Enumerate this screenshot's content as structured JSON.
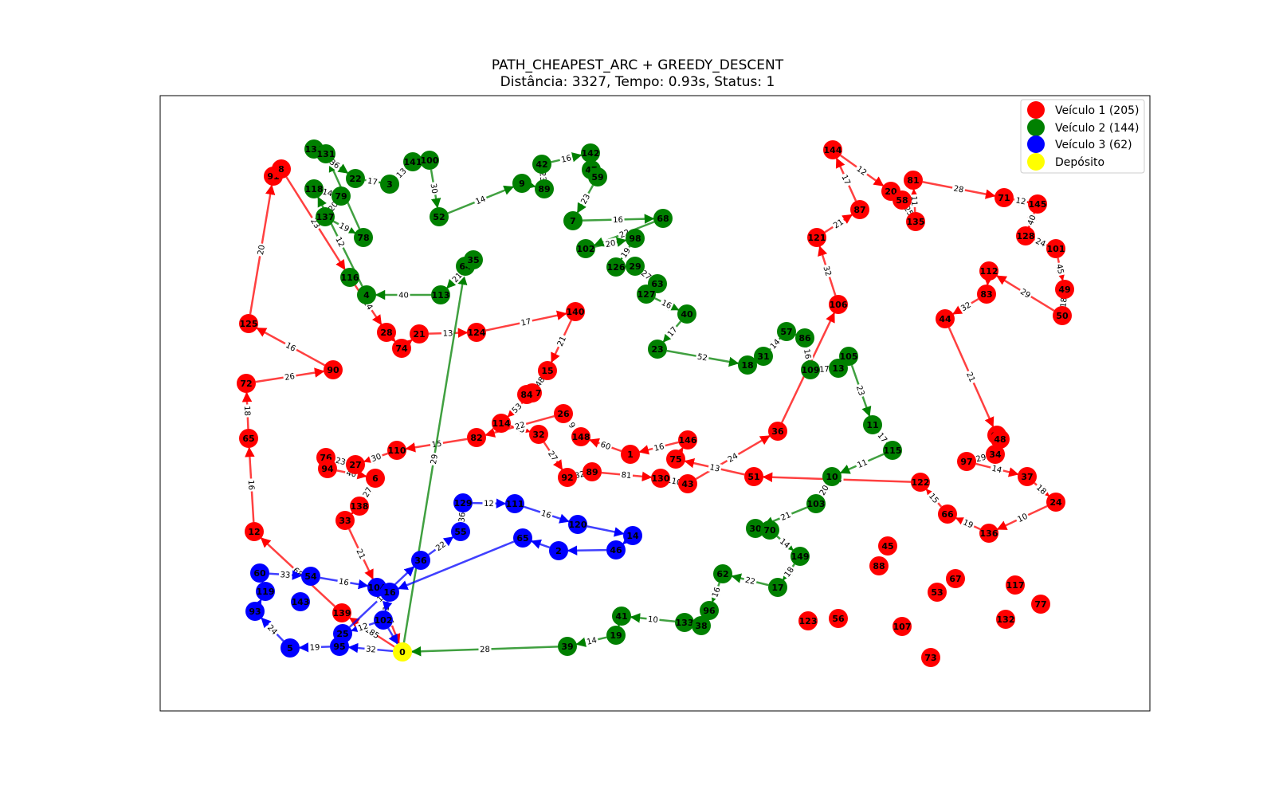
{
  "title": {
    "line1": "PATH_CHEAPEST_ARC + GREEDY_DESCENT",
    "line2": "Distância: 3327, Tempo: 0.93s, Status: 1"
  },
  "legend": [
    {
      "label": "Veículo 1 (205)",
      "color": "#ff0000"
    },
    {
      "label": "Veículo 2 (144)",
      "color": "#008000"
    },
    {
      "label": "Veículo 3 (62)",
      "color": "#0000ff"
    },
    {
      "label": "Depósito",
      "color": "#ffff00"
    }
  ],
  "routes": [
    {
      "color": "#ff0000",
      "path": [
        "0",
        "139",
        "12",
        "65",
        "72",
        "90",
        "125",
        "91",
        "8",
        "116",
        "28",
        "74",
        "21",
        "124",
        "140",
        "15",
        "147",
        "114",
        "32",
        "92",
        "89",
        "130",
        "43",
        "36",
        "106",
        "121",
        "87",
        "144",
        "20",
        "58",
        "135",
        "81",
        "71",
        "145",
        "128",
        "101",
        "49",
        "50",
        "112",
        "83",
        "44",
        "61",
        "34",
        "97",
        "37",
        "24",
        "136",
        "66",
        "122",
        "51",
        "75",
        "146",
        "1",
        "148",
        "26",
        "82",
        "110",
        "27",
        "76",
        "94",
        "6",
        "138",
        "33",
        "104",
        "0"
      ]
    },
    {
      "color": "#008000",
      "path": [
        "0",
        "64",
        "35",
        "113",
        "4",
        "118",
        "79",
        "137",
        "78",
        "131",
        "134",
        "22",
        "3",
        "141",
        "100",
        "52",
        "9",
        "89g",
        "42",
        "142",
        "47",
        "59",
        "7",
        "68",
        "102",
        "98",
        "126",
        "29",
        "63",
        "127",
        "40",
        "23",
        "18",
        "31",
        "57",
        "86",
        "109",
        "13",
        "105",
        "11",
        "115",
        "10",
        "103",
        "30",
        "70",
        "149",
        "17",
        "62",
        "96",
        "38",
        "133",
        "41",
        "19",
        "39",
        "0"
      ]
    },
    {
      "color": "#0000ff",
      "path": [
        "0",
        "95",
        "5",
        "93",
        "119",
        "60",
        "54",
        "104",
        "16",
        "102b",
        "25",
        "36b",
        "55",
        "129",
        "111",
        "120",
        "14",
        "46",
        "2",
        "65b",
        "16",
        "102b",
        "0"
      ]
    }
  ],
  "edge_weights": [
    "185",
    "68",
    "16",
    "18",
    "26",
    "16",
    "20",
    "23",
    "14",
    "13",
    "17",
    "21",
    "48",
    "53",
    "25",
    "27",
    "32",
    "81",
    "110",
    "24",
    "34",
    "32",
    "21",
    "17",
    "12",
    "25",
    "11",
    "28",
    "12",
    "40",
    "24",
    "45",
    "18",
    "29",
    "32",
    "21",
    "29",
    "14",
    "18",
    "10",
    "19",
    "15",
    "34",
    "13",
    "16",
    "60",
    "9",
    "22",
    "15",
    "30",
    "23",
    "40",
    "27",
    "21",
    "36",
    "29",
    "21",
    "40",
    "12",
    "14",
    "20",
    "19",
    "14",
    "36",
    "17",
    "13",
    "30",
    "14",
    "23",
    "16",
    "23",
    "16",
    "22",
    "20",
    "19",
    "27",
    "16",
    "17",
    "52",
    "14",
    "16",
    "17",
    "23",
    "17",
    "11",
    "20",
    "21",
    "14",
    "18",
    "22",
    "16",
    "10",
    "14",
    "28",
    "32",
    "19",
    "24",
    "33",
    "16",
    "12",
    "12",
    "19",
    "22",
    "36",
    "12",
    "16"
  ],
  "nodes": [
    {
      "id": "0",
      "label": "0",
      "color": "#ffff00"
    },
    {
      "id": "139",
      "label": "139",
      "color": "#ff0000"
    },
    {
      "id": "12",
      "label": "12",
      "color": "#ff0000"
    },
    {
      "id": "65",
      "label": "65",
      "color": "#ff0000"
    },
    {
      "id": "72",
      "label": "72",
      "color": "#ff0000"
    },
    {
      "id": "90",
      "label": "90",
      "color": "#ff0000"
    },
    {
      "id": "125",
      "label": "125",
      "color": "#ff0000"
    },
    {
      "id": "91",
      "label": "91",
      "color": "#ff0000"
    },
    {
      "id": "8",
      "label": "8",
      "color": "#ff0000"
    },
    {
      "id": "28",
      "label": "28",
      "color": "#ff0000"
    },
    {
      "id": "74",
      "label": "74",
      "color": "#ff0000"
    },
    {
      "id": "21",
      "label": "21",
      "color": "#ff0000"
    },
    {
      "id": "124",
      "label": "124",
      "color": "#ff0000"
    },
    {
      "id": "140",
      "label": "140",
      "color": "#ff0000"
    },
    {
      "id": "15",
      "label": "15",
      "color": "#ff0000"
    },
    {
      "id": "147",
      "label": "147",
      "color": "#ff0000"
    },
    {
      "id": "84",
      "label": "84",
      "color": "#ff0000"
    },
    {
      "id": "114",
      "label": "114",
      "color": "#ff0000"
    },
    {
      "id": "32",
      "label": "32",
      "color": "#ff0000"
    },
    {
      "id": "92",
      "label": "92",
      "color": "#ff0000"
    },
    {
      "id": "89",
      "label": "89",
      "color": "#ff0000"
    },
    {
      "id": "130",
      "label": "130",
      "color": "#ff0000"
    },
    {
      "id": "43",
      "label": "43",
      "color": "#ff0000"
    },
    {
      "id": "36",
      "label": "36",
      "color": "#ff0000"
    },
    {
      "id": "106",
      "label": "106",
      "color": "#ff0000"
    },
    {
      "id": "121",
      "label": "121",
      "color": "#ff0000"
    },
    {
      "id": "87",
      "label": "87",
      "color": "#ff0000"
    },
    {
      "id": "144",
      "label": "144",
      "color": "#ff0000"
    },
    {
      "id": "20",
      "label": "20",
      "color": "#ff0000"
    },
    {
      "id": "58",
      "label": "58",
      "color": "#ff0000"
    },
    {
      "id": "135",
      "label": "135",
      "color": "#ff0000"
    },
    {
      "id": "81",
      "label": "81",
      "color": "#ff0000"
    },
    {
      "id": "71",
      "label": "71",
      "color": "#ff0000"
    },
    {
      "id": "145",
      "label": "145",
      "color": "#ff0000"
    },
    {
      "id": "128",
      "label": "128",
      "color": "#ff0000"
    },
    {
      "id": "101",
      "label": "101",
      "color": "#ff0000"
    },
    {
      "id": "49",
      "label": "49",
      "color": "#ff0000"
    },
    {
      "id": "50",
      "label": "50",
      "color": "#ff0000"
    },
    {
      "id": "112",
      "label": "112",
      "color": "#ff0000"
    },
    {
      "id": "83",
      "label": "83",
      "color": "#ff0000"
    },
    {
      "id": "44",
      "label": "44",
      "color": "#ff0000"
    },
    {
      "id": "61",
      "label": "61",
      "color": "#ff0000"
    },
    {
      "id": "48",
      "label": "48",
      "color": "#ff0000"
    },
    {
      "id": "34",
      "label": "34",
      "color": "#ff0000"
    },
    {
      "id": "97",
      "label": "97",
      "color": "#ff0000"
    },
    {
      "id": "37",
      "label": "37",
      "color": "#ff0000"
    },
    {
      "id": "24",
      "label": "24",
      "color": "#ff0000"
    },
    {
      "id": "136",
      "label": "136",
      "color": "#ff0000"
    },
    {
      "id": "66",
      "label": "66",
      "color": "#ff0000"
    },
    {
      "id": "122",
      "label": "122",
      "color": "#ff0000"
    },
    {
      "id": "51",
      "label": "51",
      "color": "#ff0000"
    },
    {
      "id": "75",
      "label": "75",
      "color": "#ff0000"
    },
    {
      "id": "146",
      "label": "146",
      "color": "#ff0000"
    },
    {
      "id": "1",
      "label": "1",
      "color": "#ff0000"
    },
    {
      "id": "148",
      "label": "148",
      "color": "#ff0000"
    },
    {
      "id": "26",
      "label": "26",
      "color": "#ff0000"
    },
    {
      "id": "82",
      "label": "82",
      "color": "#ff0000"
    },
    {
      "id": "110",
      "label": "110",
      "color": "#ff0000"
    },
    {
      "id": "27",
      "label": "27",
      "color": "#ff0000"
    },
    {
      "id": "76",
      "label": "76",
      "color": "#ff0000"
    },
    {
      "id": "94",
      "label": "94",
      "color": "#ff0000"
    },
    {
      "id": "6",
      "label": "6",
      "color": "#ff0000"
    },
    {
      "id": "138",
      "label": "138",
      "color": "#ff0000"
    },
    {
      "id": "33",
      "label": "33",
      "color": "#ff0000"
    },
    {
      "id": "45",
      "label": "45",
      "color": "#ff0000"
    },
    {
      "id": "88",
      "label": "88",
      "color": "#ff0000"
    },
    {
      "id": "53",
      "label": "53",
      "color": "#ff0000"
    },
    {
      "id": "67",
      "label": "67",
      "color": "#ff0000"
    },
    {
      "id": "117",
      "label": "117",
      "color": "#ff0000"
    },
    {
      "id": "77",
      "label": "77",
      "color": "#ff0000"
    },
    {
      "id": "132",
      "label": "132",
      "color": "#ff0000"
    },
    {
      "id": "73",
      "label": "73",
      "color": "#ff0000"
    },
    {
      "id": "107",
      "label": "107",
      "color": "#ff0000"
    },
    {
      "id": "56",
      "label": "56",
      "color": "#ff0000"
    },
    {
      "id": "123",
      "label": "123",
      "color": "#ff0000"
    },
    {
      "id": "134",
      "label": "134",
      "color": "#008000"
    },
    {
      "id": "131",
      "label": "131",
      "color": "#008000"
    },
    {
      "id": "22",
      "label": "22",
      "color": "#008000"
    },
    {
      "id": "3",
      "label": "3",
      "color": "#008000"
    },
    {
      "id": "141",
      "label": "141",
      "color": "#008000"
    },
    {
      "id": "100",
      "label": "100",
      "color": "#008000"
    },
    {
      "id": "52",
      "label": "52",
      "color": "#008000"
    },
    {
      "id": "9",
      "label": "9",
      "color": "#008000"
    },
    {
      "id": "89g",
      "label": "89",
      "color": "#008000"
    },
    {
      "id": "42",
      "label": "42",
      "color": "#008000"
    },
    {
      "id": "142",
      "label": "142",
      "color": "#008000"
    },
    {
      "id": "47",
      "label": "47",
      "color": "#008000"
    },
    {
      "id": "59",
      "label": "59",
      "color": "#008000"
    },
    {
      "id": "7",
      "label": "7",
      "color": "#008000"
    },
    {
      "id": "68",
      "label": "68",
      "color": "#008000"
    },
    {
      "id": "118",
      "label": "118",
      "color": "#008000"
    },
    {
      "id": "79",
      "label": "79",
      "color": "#008000"
    },
    {
      "id": "137",
      "label": "137",
      "color": "#008000"
    },
    {
      "id": "78",
      "label": "78",
      "color": "#008000"
    },
    {
      "id": "116",
      "label": "116",
      "color": "#008000"
    },
    {
      "id": "4",
      "label": "4",
      "color": "#008000"
    },
    {
      "id": "113",
      "label": "113",
      "color": "#008000"
    },
    {
      "id": "64",
      "label": "64",
      "color": "#008000"
    },
    {
      "id": "35",
      "label": "35",
      "color": "#008000"
    },
    {
      "id": "102",
      "label": "102",
      "color": "#008000"
    },
    {
      "id": "98",
      "label": "98",
      "color": "#008000"
    },
    {
      "id": "126",
      "label": "126",
      "color": "#008000"
    },
    {
      "id": "29",
      "label": "29",
      "color": "#008000"
    },
    {
      "id": "63",
      "label": "63",
      "color": "#008000"
    },
    {
      "id": "127",
      "label": "127",
      "color": "#008000"
    },
    {
      "id": "40",
      "label": "40",
      "color": "#008000"
    },
    {
      "id": "23",
      "label": "23",
      "color": "#008000"
    },
    {
      "id": "18",
      "label": "18",
      "color": "#008000"
    },
    {
      "id": "31",
      "label": "31",
      "color": "#008000"
    },
    {
      "id": "57",
      "label": "57",
      "color": "#008000"
    },
    {
      "id": "86",
      "label": "86",
      "color": "#008000"
    },
    {
      "id": "109",
      "label": "109",
      "color": "#008000"
    },
    {
      "id": "13",
      "label": "13",
      "color": "#008000"
    },
    {
      "id": "105",
      "label": "105",
      "color": "#008000"
    },
    {
      "id": "11",
      "label": "11",
      "color": "#008000"
    },
    {
      "id": "115",
      "label": "115",
      "color": "#008000"
    },
    {
      "id": "10",
      "label": "10",
      "color": "#008000"
    },
    {
      "id": "103",
      "label": "103",
      "color": "#008000"
    },
    {
      "id": "30",
      "label": "30",
      "color": "#008000"
    },
    {
      "id": "70",
      "label": "70",
      "color": "#008000"
    },
    {
      "id": "149",
      "label": "149",
      "color": "#008000"
    },
    {
      "id": "17",
      "label": "17",
      "color": "#008000"
    },
    {
      "id": "62",
      "label": "62",
      "color": "#008000"
    },
    {
      "id": "96",
      "label": "96",
      "color": "#008000"
    },
    {
      "id": "133",
      "label": "133",
      "color": "#008000"
    },
    {
      "id": "38",
      "label": "38",
      "color": "#008000"
    },
    {
      "id": "41",
      "label": "41",
      "color": "#008000"
    },
    {
      "id": "19",
      "label": "19",
      "color": "#008000"
    },
    {
      "id": "39",
      "label": "39",
      "color": "#008000"
    },
    {
      "id": "95",
      "label": "95",
      "color": "#0000ff"
    },
    {
      "id": "5",
      "label": "5",
      "color": "#0000ff"
    },
    {
      "id": "93",
      "label": "93",
      "color": "#0000ff"
    },
    {
      "id": "119",
      "label": "119",
      "color": "#0000ff"
    },
    {
      "id": "60",
      "label": "60",
      "color": "#0000ff"
    },
    {
      "id": "54",
      "label": "54",
      "color": "#0000ff"
    },
    {
      "id": "143",
      "label": "143",
      "color": "#0000ff"
    },
    {
      "id": "25",
      "label": "25",
      "color": "#0000ff"
    },
    {
      "id": "104",
      "label": "104",
      "color": "#0000ff"
    },
    {
      "id": "16",
      "label": "16",
      "color": "#0000ff"
    },
    {
      "id": "102b",
      "label": "102",
      "color": "#0000ff"
    },
    {
      "id": "36b",
      "label": "36",
      "color": "#0000ff"
    },
    {
      "id": "55",
      "label": "55",
      "color": "#0000ff"
    },
    {
      "id": "129",
      "label": "129",
      "color": "#0000ff"
    },
    {
      "id": "111",
      "label": "111",
      "color": "#0000ff"
    },
    {
      "id": "120",
      "label": "120",
      "color": "#0000ff"
    },
    {
      "id": "14",
      "label": "14",
      "color": "#0000ff"
    },
    {
      "id": "46",
      "label": "46",
      "color": "#0000ff"
    },
    {
      "id": "2",
      "label": "2",
      "color": "#0000ff"
    },
    {
      "id": "65b",
      "label": "65",
      "color": "#0000ff"
    }
  ]
}
